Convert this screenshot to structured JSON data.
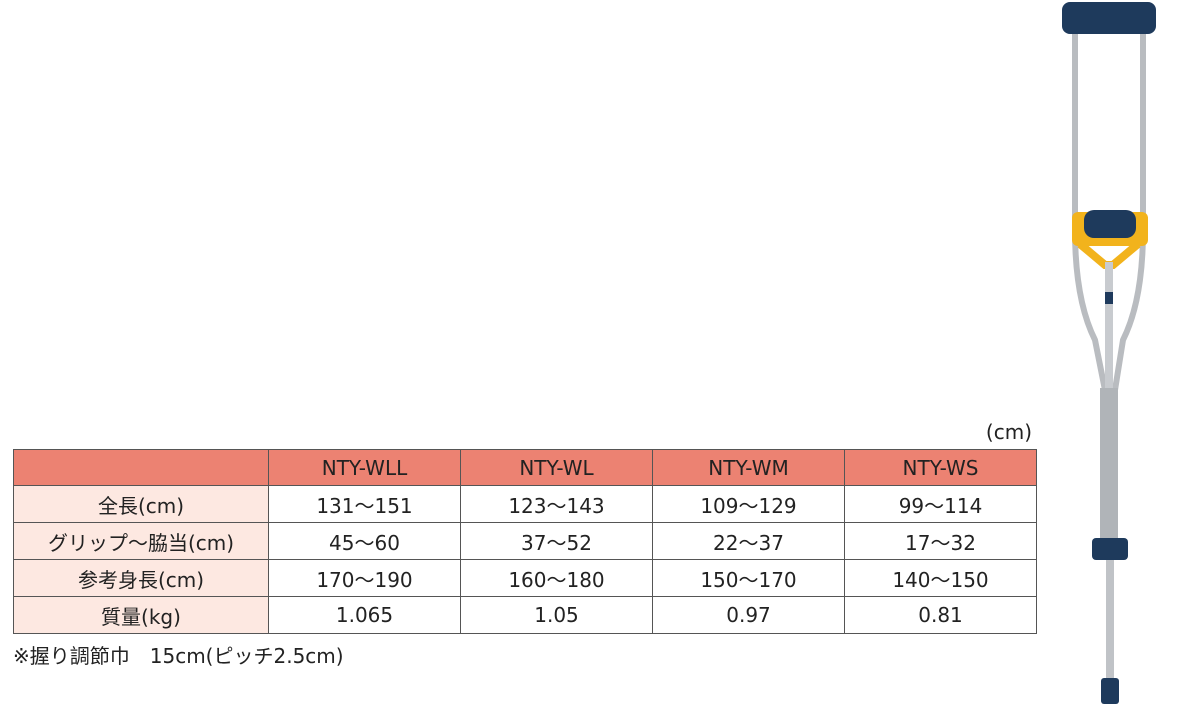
{
  "unit": "(cm)",
  "table": {
    "columns": [
      "NTY-WLL",
      "NTY-WL",
      "NTY-WM",
      "NTY-WS"
    ],
    "rows": [
      {
        "label": "全長(cm)",
        "cells": [
          "131〜151",
          "123〜143",
          "109〜129",
          "99〜114"
        ]
      },
      {
        "label": "グリップ〜脇当(cm)",
        "cells": [
          "45〜60",
          "37〜52",
          "22〜37",
          "17〜32"
        ]
      },
      {
        "label": "参考身長(cm)",
        "cells": [
          "170〜190",
          "160〜180",
          "150〜170",
          "140〜150"
        ]
      },
      {
        "label": "質量(kg)",
        "cells": [
          "1.065",
          "1.05",
          "0.97",
          "0.81"
        ]
      }
    ]
  },
  "note": "※握り調節巾　15cm(ピッチ2.5cm)"
}
